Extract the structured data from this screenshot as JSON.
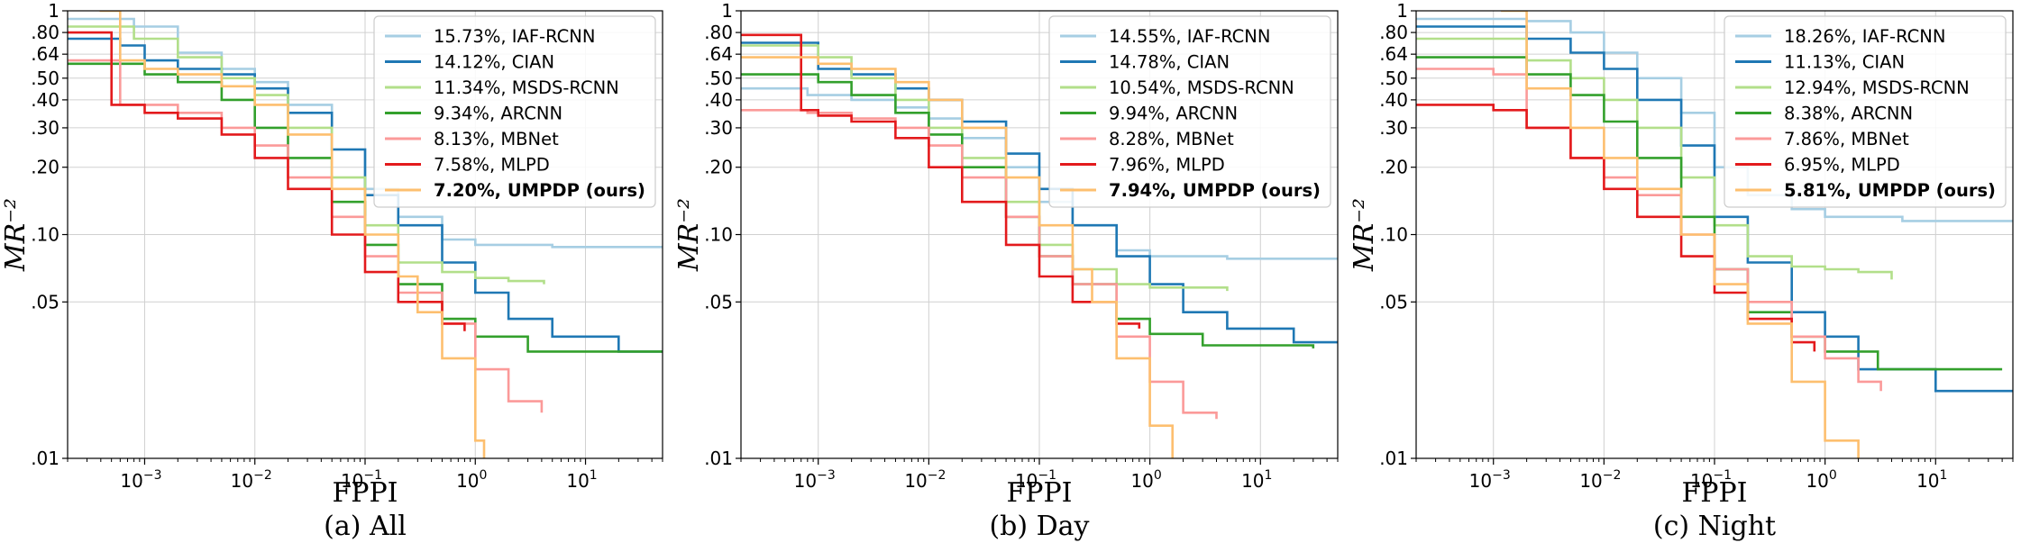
{
  "figure": {
    "colors": {
      "IAF-RCNN": "#a6cee3",
      "CIAN": "#1f78b4",
      "MSDS-RCNN": "#b2df8a",
      "ARCNN": "#33a02c",
      "MBNet": "#fb9a99",
      "MLPD": "#e31a1c",
      "UMPDP (ours)": "#fdbf6f"
    }
  },
  "chart_data": [
    {
      "type": "line",
      "caption": "(a) All",
      "xlabel": "FPPI",
      "ylabel": "MR⁻²",
      "xscale": "log",
      "yscale": "log",
      "xlim": [
        0.0002,
        50
      ],
      "ylim": [
        0.01,
        1
      ],
      "xticks": [
        {
          "v": 0.001,
          "b": "10",
          "e": "−3"
        },
        {
          "v": 0.01,
          "b": "10",
          "e": "−2"
        },
        {
          "v": 0.1,
          "b": "10",
          "e": "−1"
        },
        {
          "v": 1,
          "b": "10",
          "e": "0"
        },
        {
          "v": 10,
          "b": "10",
          "e": "1"
        }
      ],
      "yticks": [
        {
          "v": 0.01,
          "label": ".01"
        },
        {
          "v": 0.05,
          "label": ".05"
        },
        {
          "v": 0.1,
          "label": ".10"
        },
        {
          "v": 0.2,
          "label": ".20"
        },
        {
          "v": 0.3,
          "label": ".30"
        },
        {
          "v": 0.4,
          "label": ".40"
        },
        {
          "v": 0.5,
          "label": ".50"
        },
        {
          "v": 0.64,
          "label": ".64"
        },
        {
          "v": 0.8,
          "label": ".80"
        },
        {
          "v": 1,
          "label": "1"
        }
      ],
      "grid": true,
      "legend_position": "top-right",
      "series": [
        {
          "name": "15.73%, IAF-RCNN",
          "key": "IAF-RCNN",
          "bold": false,
          "x": [
            0.0002,
            0.0008,
            0.002,
            0.005,
            0.01,
            0.02,
            0.05,
            0.1,
            0.2,
            0.5,
            1,
            5,
            50
          ],
          "y": [
            0.92,
            0.85,
            0.65,
            0.55,
            0.48,
            0.38,
            0.24,
            0.16,
            0.12,
            0.095,
            0.09,
            0.088,
            0.088
          ]
        },
        {
          "name": "14.12%, CIAN",
          "key": "CIAN",
          "bold": false,
          "x": [
            0.0002,
            0.0006,
            0.001,
            0.002,
            0.005,
            0.01,
            0.02,
            0.05,
            0.1,
            0.2,
            0.5,
            1,
            2,
            5,
            20,
            50
          ],
          "y": [
            0.75,
            0.7,
            0.6,
            0.55,
            0.52,
            0.45,
            0.35,
            0.24,
            0.15,
            0.11,
            0.075,
            0.055,
            0.042,
            0.035,
            0.03,
            0.03
          ]
        },
        {
          "name": "11.34%, MSDS-RCNN",
          "key": "MSDS-RCNN",
          "bold": false,
          "x": [
            0.0002,
            0.0008,
            0.002,
            0.005,
            0.01,
            0.02,
            0.05,
            0.1,
            0.2,
            0.5,
            1,
            2,
            4.2
          ],
          "y": [
            0.85,
            0.75,
            0.62,
            0.5,
            0.42,
            0.3,
            0.18,
            0.11,
            0.075,
            0.068,
            0.064,
            0.062,
            0.06
          ]
        },
        {
          "name": "9.34%, ARCNN",
          "key": "ARCNN",
          "bold": false,
          "x": [
            0.0002,
            0.001,
            0.002,
            0.005,
            0.01,
            0.02,
            0.05,
            0.1,
            0.2,
            0.5,
            1,
            3,
            50
          ],
          "y": [
            0.58,
            0.52,
            0.48,
            0.4,
            0.3,
            0.22,
            0.14,
            0.09,
            0.06,
            0.042,
            0.035,
            0.03,
            0.03
          ]
        },
        {
          "name": "8.13%, MBNet",
          "key": "MBNet",
          "bold": false,
          "x": [
            0.0002,
            0.0006,
            0.002,
            0.005,
            0.01,
            0.02,
            0.05,
            0.1,
            0.2,
            0.5,
            1,
            2,
            4
          ],
          "y": [
            0.6,
            0.38,
            0.35,
            0.3,
            0.25,
            0.18,
            0.12,
            0.08,
            0.055,
            0.04,
            0.025,
            0.018,
            0.016
          ]
        },
        {
          "name": "7.58%, MLPD",
          "key": "MLPD",
          "bold": false,
          "x": [
            0.0002,
            0.0005,
            0.001,
            0.002,
            0.005,
            0.01,
            0.02,
            0.05,
            0.1,
            0.2,
            0.5,
            0.8
          ],
          "y": [
            0.8,
            0.38,
            0.35,
            0.33,
            0.28,
            0.22,
            0.16,
            0.1,
            0.068,
            0.05,
            0.04,
            0.037
          ]
        },
        {
          "name": "7.20%, UMPDP (ours)",
          "key": "UMPDP (ours)",
          "bold": true,
          "x": [
            0.0002,
            0.0004,
            0.0006,
            0.001,
            0.002,
            0.005,
            0.01,
            0.02,
            0.05,
            0.1,
            0.2,
            0.3,
            0.5,
            1,
            1.2
          ],
          "y": [
            1.05,
            1.0,
            0.6,
            0.55,
            0.52,
            0.46,
            0.38,
            0.28,
            0.16,
            0.1,
            0.065,
            0.045,
            0.028,
            0.012,
            0.01
          ]
        }
      ]
    },
    {
      "type": "line",
      "caption": "(b) Day",
      "xlabel": "FPPI",
      "ylabel": "MR⁻²",
      "xscale": "log",
      "yscale": "log",
      "xlim": [
        0.0002,
        50
      ],
      "ylim": [
        0.01,
        1
      ],
      "xticks": [
        {
          "v": 0.001,
          "b": "10",
          "e": "−3"
        },
        {
          "v": 0.01,
          "b": "10",
          "e": "−2"
        },
        {
          "v": 0.1,
          "b": "10",
          "e": "−1"
        },
        {
          "v": 1,
          "b": "10",
          "e": "0"
        },
        {
          "v": 10,
          "b": "10",
          "e": "1"
        }
      ],
      "yticks": [
        {
          "v": 0.01,
          "label": ".01"
        },
        {
          "v": 0.05,
          "label": ".05"
        },
        {
          "v": 0.1,
          "label": ".10"
        },
        {
          "v": 0.2,
          "label": ".20"
        },
        {
          "v": 0.3,
          "label": ".30"
        },
        {
          "v": 0.4,
          "label": ".40"
        },
        {
          "v": 0.5,
          "label": ".50"
        },
        {
          "v": 0.64,
          "label": ".64"
        },
        {
          "v": 0.8,
          "label": ".80"
        },
        {
          "v": 1,
          "label": "1"
        }
      ],
      "grid": true,
      "legend_position": "top-right",
      "series": [
        {
          "name": "14.55%, IAF-RCNN",
          "key": "IAF-RCNN",
          "bold": false,
          "x": [
            0.0002,
            0.0008,
            0.002,
            0.005,
            0.01,
            0.02,
            0.05,
            0.1,
            0.2,
            0.5,
            1,
            5,
            50
          ],
          "y": [
            0.45,
            0.42,
            0.4,
            0.37,
            0.33,
            0.27,
            0.2,
            0.14,
            0.11,
            0.085,
            0.08,
            0.078,
            0.078
          ]
        },
        {
          "name": "14.78%, CIAN",
          "key": "CIAN",
          "bold": false,
          "x": [
            0.0002,
            0.001,
            0.002,
            0.005,
            0.01,
            0.02,
            0.05,
            0.1,
            0.2,
            0.5,
            1,
            2,
            5,
            20,
            50
          ],
          "y": [
            0.72,
            0.55,
            0.52,
            0.45,
            0.4,
            0.32,
            0.23,
            0.16,
            0.11,
            0.08,
            0.06,
            0.045,
            0.038,
            0.033,
            0.033
          ]
        },
        {
          "name": "10.54%, MSDS-RCNN",
          "key": "MSDS-RCNN",
          "bold": false,
          "x": [
            0.0002,
            0.001,
            0.002,
            0.005,
            0.01,
            0.02,
            0.05,
            0.1,
            0.2,
            0.5,
            1,
            5
          ],
          "y": [
            0.7,
            0.62,
            0.5,
            0.4,
            0.3,
            0.22,
            0.14,
            0.09,
            0.07,
            0.06,
            0.058,
            0.056
          ]
        },
        {
          "name": "9.94%, ARCNN",
          "key": "ARCNN",
          "bold": false,
          "x": [
            0.0002,
            0.001,
            0.002,
            0.005,
            0.01,
            0.02,
            0.05,
            0.1,
            0.2,
            0.5,
            1,
            3,
            30
          ],
          "y": [
            0.52,
            0.48,
            0.42,
            0.35,
            0.28,
            0.2,
            0.12,
            0.08,
            0.06,
            0.042,
            0.036,
            0.032,
            0.031
          ]
        },
        {
          "name": "8.28%, MBNet",
          "key": "MBNet",
          "bold": false,
          "x": [
            0.0002,
            0.0008,
            0.002,
            0.005,
            0.01,
            0.02,
            0.05,
            0.1,
            0.2,
            0.5,
            1,
            2,
            4
          ],
          "y": [
            0.36,
            0.35,
            0.33,
            0.3,
            0.25,
            0.18,
            0.12,
            0.08,
            0.06,
            0.035,
            0.022,
            0.016,
            0.015
          ]
        },
        {
          "name": "7.96%, MLPD",
          "key": "MLPD",
          "bold": false,
          "x": [
            0.0002,
            0.0007,
            0.001,
            0.002,
            0.005,
            0.01,
            0.02,
            0.05,
            0.1,
            0.2,
            0.5,
            0.8
          ],
          "y": [
            0.78,
            0.36,
            0.34,
            0.32,
            0.27,
            0.2,
            0.14,
            0.09,
            0.065,
            0.05,
            0.04,
            0.038
          ]
        },
        {
          "name": "7.94%, UMPDP (ours)",
          "key": "UMPDP (ours)",
          "bold": true,
          "x": [
            0.0002,
            0.001,
            0.002,
            0.005,
            0.01,
            0.02,
            0.05,
            0.1,
            0.2,
            0.3,
            0.5,
            1,
            1.6
          ],
          "y": [
            0.62,
            0.58,
            0.55,
            0.48,
            0.4,
            0.3,
            0.18,
            0.11,
            0.07,
            0.05,
            0.028,
            0.014,
            0.01
          ]
        }
      ]
    },
    {
      "type": "line",
      "caption": "(c) Night",
      "xlabel": "FPPI",
      "ylabel": "MR⁻²",
      "xscale": "log",
      "yscale": "log",
      "xlim": [
        0.0002,
        50
      ],
      "ylim": [
        0.01,
        1
      ],
      "xticks": [
        {
          "v": 0.001,
          "b": "10",
          "e": "−3"
        },
        {
          "v": 0.01,
          "b": "10",
          "e": "−2"
        },
        {
          "v": 0.1,
          "b": "10",
          "e": "−1"
        },
        {
          "v": 1,
          "b": "10",
          "e": "0"
        },
        {
          "v": 10,
          "b": "10",
          "e": "1"
        }
      ],
      "yticks": [
        {
          "v": 0.01,
          "label": ".01"
        },
        {
          "v": 0.05,
          "label": ".05"
        },
        {
          "v": 0.1,
          "label": ".10"
        },
        {
          "v": 0.2,
          "label": ".20"
        },
        {
          "v": 0.3,
          "label": ".30"
        },
        {
          "v": 0.4,
          "label": ".40"
        },
        {
          "v": 0.5,
          "label": ".50"
        },
        {
          "v": 0.64,
          "label": ".64"
        },
        {
          "v": 0.8,
          "label": ".80"
        },
        {
          "v": 1,
          "label": "1"
        }
      ],
      "grid": true,
      "legend_position": "top-right",
      "series": [
        {
          "name": "18.26%, IAF-RCNN",
          "key": "IAF-RCNN",
          "bold": false,
          "x": [
            0.0002,
            0.002,
            0.005,
            0.01,
            0.02,
            0.05,
            0.1,
            0.2,
            0.5,
            1,
            5,
            50
          ],
          "y": [
            0.92,
            0.9,
            0.8,
            0.65,
            0.5,
            0.35,
            0.2,
            0.15,
            0.13,
            0.12,
            0.115,
            0.115
          ]
        },
        {
          "name": "11.13%, CIAN",
          "key": "CIAN",
          "bold": false,
          "x": [
            0.0002,
            0.002,
            0.005,
            0.01,
            0.02,
            0.05,
            0.1,
            0.2,
            0.5,
            1,
            2,
            10,
            50
          ],
          "y": [
            0.85,
            0.75,
            0.65,
            0.55,
            0.4,
            0.25,
            0.12,
            0.075,
            0.045,
            0.035,
            0.025,
            0.02,
            0.02
          ]
        },
        {
          "name": "12.94%, MSDS-RCNN",
          "key": "MSDS-RCNN",
          "bold": false,
          "x": [
            0.0002,
            0.002,
            0.005,
            0.01,
            0.02,
            0.05,
            0.1,
            0.2,
            0.5,
            1,
            2,
            4
          ],
          "y": [
            0.75,
            0.6,
            0.5,
            0.4,
            0.3,
            0.18,
            0.11,
            0.08,
            0.072,
            0.07,
            0.068,
            0.063
          ]
        },
        {
          "name": "8.38%, ARCNN",
          "key": "ARCNN",
          "bold": false,
          "x": [
            0.0002,
            0.002,
            0.005,
            0.01,
            0.02,
            0.05,
            0.1,
            0.2,
            0.5,
            1,
            3,
            40
          ],
          "y": [
            0.62,
            0.52,
            0.42,
            0.32,
            0.22,
            0.12,
            0.07,
            0.045,
            0.035,
            0.03,
            0.025,
            0.025
          ]
        },
        {
          "name": "7.86%, MBNet",
          "key": "MBNet",
          "bold": false,
          "x": [
            0.0002,
            0.001,
            0.002,
            0.005,
            0.01,
            0.02,
            0.05,
            0.1,
            0.2,
            0.5,
            1,
            2,
            3.2
          ],
          "y": [
            0.55,
            0.52,
            0.3,
            0.22,
            0.18,
            0.15,
            0.1,
            0.07,
            0.05,
            0.035,
            0.028,
            0.022,
            0.02
          ]
        },
        {
          "name": "6.95%, MLPD",
          "key": "MLPD",
          "bold": false,
          "x": [
            0.0002,
            0.001,
            0.002,
            0.005,
            0.01,
            0.02,
            0.05,
            0.1,
            0.2,
            0.5,
            0.8
          ],
          "y": [
            0.38,
            0.36,
            0.3,
            0.22,
            0.16,
            0.12,
            0.08,
            0.055,
            0.042,
            0.033,
            0.03
          ]
        },
        {
          "name": "5.81%, UMPDP (ours)",
          "key": "UMPDP (ours)",
          "bold": true,
          "x": [
            0.0002,
            0.0012,
            0.002,
            0.005,
            0.01,
            0.02,
            0.05,
            0.1,
            0.2,
            0.5,
            1,
            2
          ],
          "y": [
            1.05,
            1.0,
            0.45,
            0.3,
            0.22,
            0.16,
            0.1,
            0.06,
            0.04,
            0.022,
            0.012,
            0.01
          ]
        }
      ]
    }
  ]
}
